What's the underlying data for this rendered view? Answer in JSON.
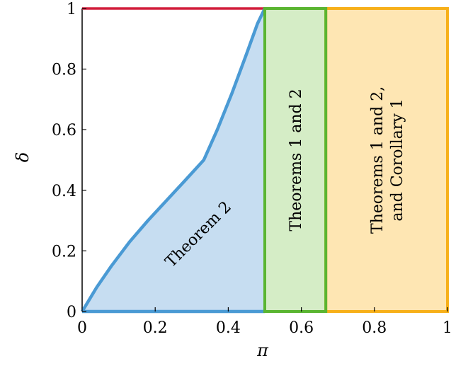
{
  "chart_data": {
    "type": "area",
    "xlabel": "π",
    "ylabel": "δ",
    "xlim": [
      0,
      1
    ],
    "ylim": [
      0,
      1
    ],
    "x_ticks": [
      "0",
      "0.2",
      "0.4",
      "0.6",
      "0.8",
      "1"
    ],
    "y_ticks": [
      "0",
      "0.2",
      "0.4",
      "0.6",
      "0.8",
      "1"
    ],
    "boundary_curve": {
      "x": [
        0,
        0.04,
        0.08,
        0.13,
        0.18,
        0.23,
        0.28,
        0.333,
        0.37,
        0.41,
        0.45,
        0.48,
        0.5
      ],
      "y": [
        0,
        0.08,
        0.15,
        0.23,
        0.3,
        0.365,
        0.43,
        0.5,
        0.6,
        0.72,
        0.85,
        0.95,
        1.0
      ]
    },
    "regions": [
      {
        "label": "Theorem 2",
        "x_range": [
          0,
          0.5
        ],
        "lower": 0,
        "upper": "boundary_curve",
        "fill": "#c6ddf1",
        "stroke": "#4a9ad4"
      },
      {
        "label": "Theorems 1 and 2",
        "x_range": [
          0.5,
          0.667
        ],
        "y_range": [
          0,
          1
        ],
        "fill": "#d5edc6",
        "stroke": "#5ab531"
      },
      {
        "label_lines": [
          "Theorems 1 and 2,",
          "and Corollary 1"
        ],
        "x_range": [
          0.667,
          1
        ],
        "y_range": [
          0,
          1
        ],
        "fill": "#fee6b3",
        "stroke": "#f7b01a"
      }
    ],
    "top_line": {
      "x_range": [
        0,
        0.5
      ],
      "y": 1,
      "color": "#d21e3c"
    }
  }
}
